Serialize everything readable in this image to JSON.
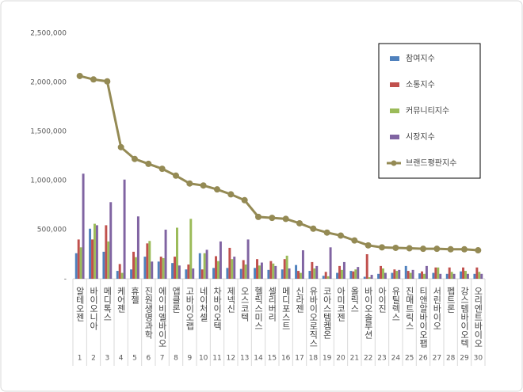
{
  "chart_data": {
    "type": "bar",
    "categories": [
      "알테오젠",
      "바이오니아",
      "메디톡스",
      "케어젠",
      "휴젤",
      "진원생명과학",
      "에이비엘바이오",
      "앱클론",
      "고바이오랩",
      "네이처셀",
      "차바이오텍",
      "제넥신",
      "오스코텍",
      "헬릭스미스",
      "셀리버리",
      "메디포스트",
      "신라젠",
      "유바이오로직스",
      "코아스템켐온",
      "아미코젠",
      "올릭스",
      "바이오솔루션",
      "아이진",
      "유틸렉스",
      "진매트릭스",
      "티앤알바이오팹",
      "서린바이오",
      "펩트론",
      "강스템바이오텍",
      "오리엔트바이오"
    ],
    "ranks": [
      1,
      2,
      3,
      4,
      5,
      6,
      7,
      8,
      9,
      10,
      11,
      12,
      13,
      14,
      15,
      16,
      17,
      18,
      19,
      20,
      21,
      22,
      23,
      24,
      25,
      26,
      27,
      28,
      29,
      30
    ],
    "series": [
      {
        "name": "참여지수",
        "type": "bar",
        "color": "#4f81bd",
        "values": [
          260000,
          510000,
          275000,
          80000,
          95000,
          225000,
          175000,
          160000,
          95000,
          260000,
          110000,
          110000,
          100000,
          110000,
          90000,
          95000,
          140000,
          80000,
          30000,
          60000,
          80000,
          20000,
          50000,
          60000,
          130000,
          55000,
          60000,
          50000,
          75000,
          50000
        ]
      },
      {
        "name": "소통지수",
        "type": "bar",
        "color": "#c0504d",
        "values": [
          400000,
          400000,
          545000,
          150000,
          275000,
          360000,
          225000,
          225000,
          145000,
          95000,
          230000,
          315000,
          190000,
          200000,
          180000,
          200000,
          80000,
          170000,
          70000,
          130000,
          75000,
          250000,
          130000,
          95000,
          80000,
          75000,
          115000,
          115000,
          115000,
          115000
        ]
      },
      {
        "name": "커뮤니티지수",
        "type": "bar",
        "color": "#9bbb59",
        "values": [
          320000,
          560000,
          380000,
          60000,
          220000,
          385000,
          210000,
          520000,
          610000,
          260000,
          180000,
          200000,
          145000,
          135000,
          155000,
          235000,
          60000,
          105000,
          25000,
          90000,
          95000,
          15000,
          105000,
          80000,
          60000,
          50000,
          115000,
          70000,
          80000,
          70000
        ]
      },
      {
        "name": "시장지수",
        "type": "bar",
        "color": "#8064a2",
        "values": [
          1070000,
          545000,
          780000,
          1010000,
          635000,
          175000,
          500000,
          135000,
          105000,
          295000,
          380000,
          225000,
          400000,
          165000,
          130000,
          105000,
          290000,
          130000,
          320000,
          170000,
          120000,
          40000,
          60000,
          90000,
          90000,
          130000,
          50000,
          50000,
          50000,
          50000
        ]
      },
      {
        "name": "브랜드평판지수",
        "type": "line",
        "color": "#948a54",
        "values": [
          2065000,
          2030000,
          2010000,
          1340000,
          1220000,
          1170000,
          1120000,
          1050000,
          970000,
          950000,
          910000,
          860000,
          800000,
          630000,
          620000,
          610000,
          565000,
          510000,
          470000,
          440000,
          390000,
          340000,
          320000,
          315000,
          310000,
          305000,
          305000,
          300000,
          300000,
          290000
        ]
      }
    ],
    "ylim": [
      0,
      2500000
    ],
    "yticks": [
      {
        "value": 0,
        "label": "-"
      },
      {
        "value": 500000,
        "label": "500,000"
      },
      {
        "value": 1000000,
        "label": "1,000,000"
      },
      {
        "value": 1500000,
        "label": "1,500,000"
      },
      {
        "value": 2000000,
        "label": "2,000,000"
      },
      {
        "value": 2500000,
        "label": "2,500,000"
      }
    ],
    "grid": false,
    "legend": "upper right"
  }
}
